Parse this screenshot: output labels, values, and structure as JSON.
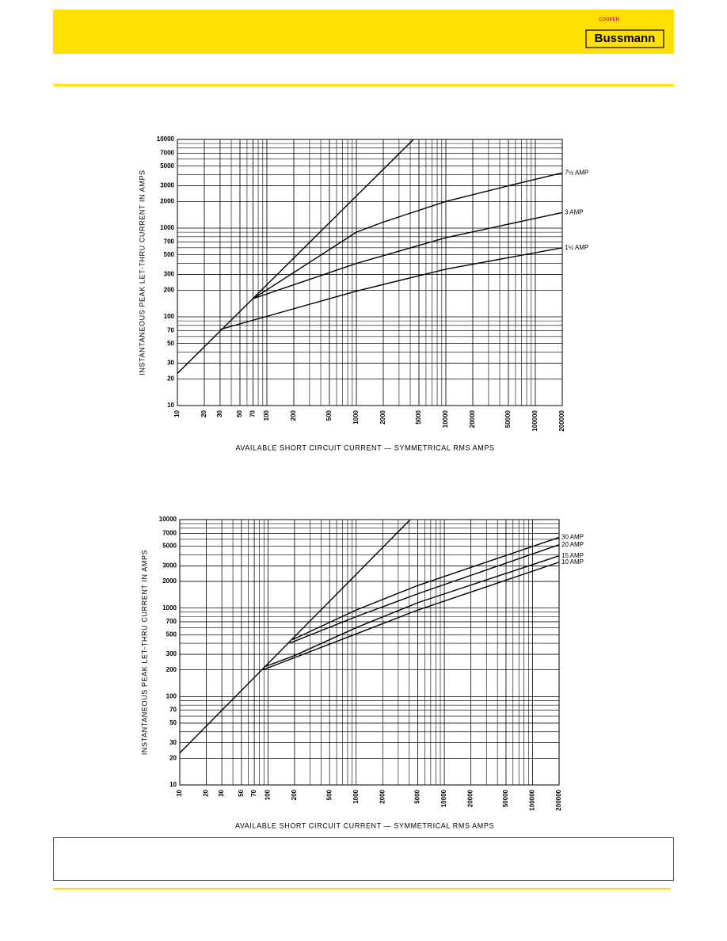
{
  "header": {
    "parent": "COOPER",
    "brand": "Bussmann"
  },
  "chart_data": [
    {
      "type": "line",
      "xscale": "log",
      "yscale": "log",
      "grid": true,
      "x_label": "AVAILABLE SHORT CIRCUIT CURRENT — SYMMETRICAL RMS AMPS",
      "y_label": "INSTANTANEOUS PEAK LET-THRU CURRENT IN AMPS",
      "xlim": [
        10,
        200000
      ],
      "ylim": [
        10,
        10000
      ],
      "xticks": [
        10,
        20,
        30,
        50,
        70,
        100,
        200,
        500,
        1000,
        2000,
        5000,
        10000,
        20000,
        50000,
        100000,
        200000
      ],
      "yticks": [
        10,
        20,
        30,
        50,
        70,
        100,
        200,
        300,
        500,
        700,
        1000,
        2000,
        3000,
        5000,
        7000,
        10000
      ],
      "series": [
        {
          "color": "#000000",
          "x": [
            10,
            4348
          ],
          "values": [
            23,
            10000
          ]
        },
        {
          "name": "7½ AMP",
          "color": "#000000",
          "x": [
            70,
            1000,
            2000,
            10000,
            50000,
            200000
          ],
          "values": [
            160,
            900,
            1170,
            2000,
            3000,
            4200
          ]
        },
        {
          "name": "3 AMP",
          "color": "#000000",
          "x": [
            70,
            1000,
            10000,
            200000
          ],
          "values": [
            160,
            400,
            780,
            1500
          ]
        },
        {
          "name": "1½ AMP",
          "color": "#000000",
          "x": [
            30,
            1000,
            10000,
            200000
          ],
          "values": [
            72,
            195,
            345,
            600
          ]
        }
      ]
    },
    {
      "type": "line",
      "xscale": "log",
      "yscale": "log",
      "grid": true,
      "x_label": "AVAILABLE SHORT CIRCUIT CURRENT — SYMMETRICAL RMS AMPS",
      "y_label": "INSTANTANEOUS PEAK LET-THRU CURRENT IN AMPS",
      "xlim": [
        10,
        200000
      ],
      "ylim": [
        10,
        10000
      ],
      "xticks": [
        10,
        20,
        30,
        50,
        70,
        100,
        200,
        500,
        1000,
        2000,
        5000,
        10000,
        20000,
        50000,
        100000,
        200000
      ],
      "yticks": [
        10,
        20,
        30,
        50,
        70,
        100,
        200,
        300,
        500,
        700,
        1000,
        2000,
        3000,
        5000,
        7000,
        10000
      ],
      "series": [
        {
          "color": "#000000",
          "x": [
            10,
            4100
          ],
          "values": [
            23,
            10000
          ]
        },
        {
          "name": "30 AMP",
          "color": "#000000",
          "x": [
            190,
            1000,
            5000,
            200000
          ],
          "values": [
            440,
            950,
            1800,
            6300
          ]
        },
        {
          "name": "20 AMP",
          "color": "#000000",
          "x": [
            175,
            1000,
            5000,
            200000
          ],
          "values": [
            400,
            800,
            1450,
            5200
          ]
        },
        {
          "name": "15 AMP",
          "color": "#000000",
          "x": [
            95,
            200,
            1000,
            5000,
            200000
          ],
          "values": [
            220,
            290,
            600,
            1150,
            3900
          ]
        },
        {
          "name": "10 AMP",
          "color": "#000000",
          "x": [
            87,
            1000,
            5000,
            200000
          ],
          "values": [
            200,
            510,
            950,
            3300
          ]
        }
      ]
    }
  ]
}
